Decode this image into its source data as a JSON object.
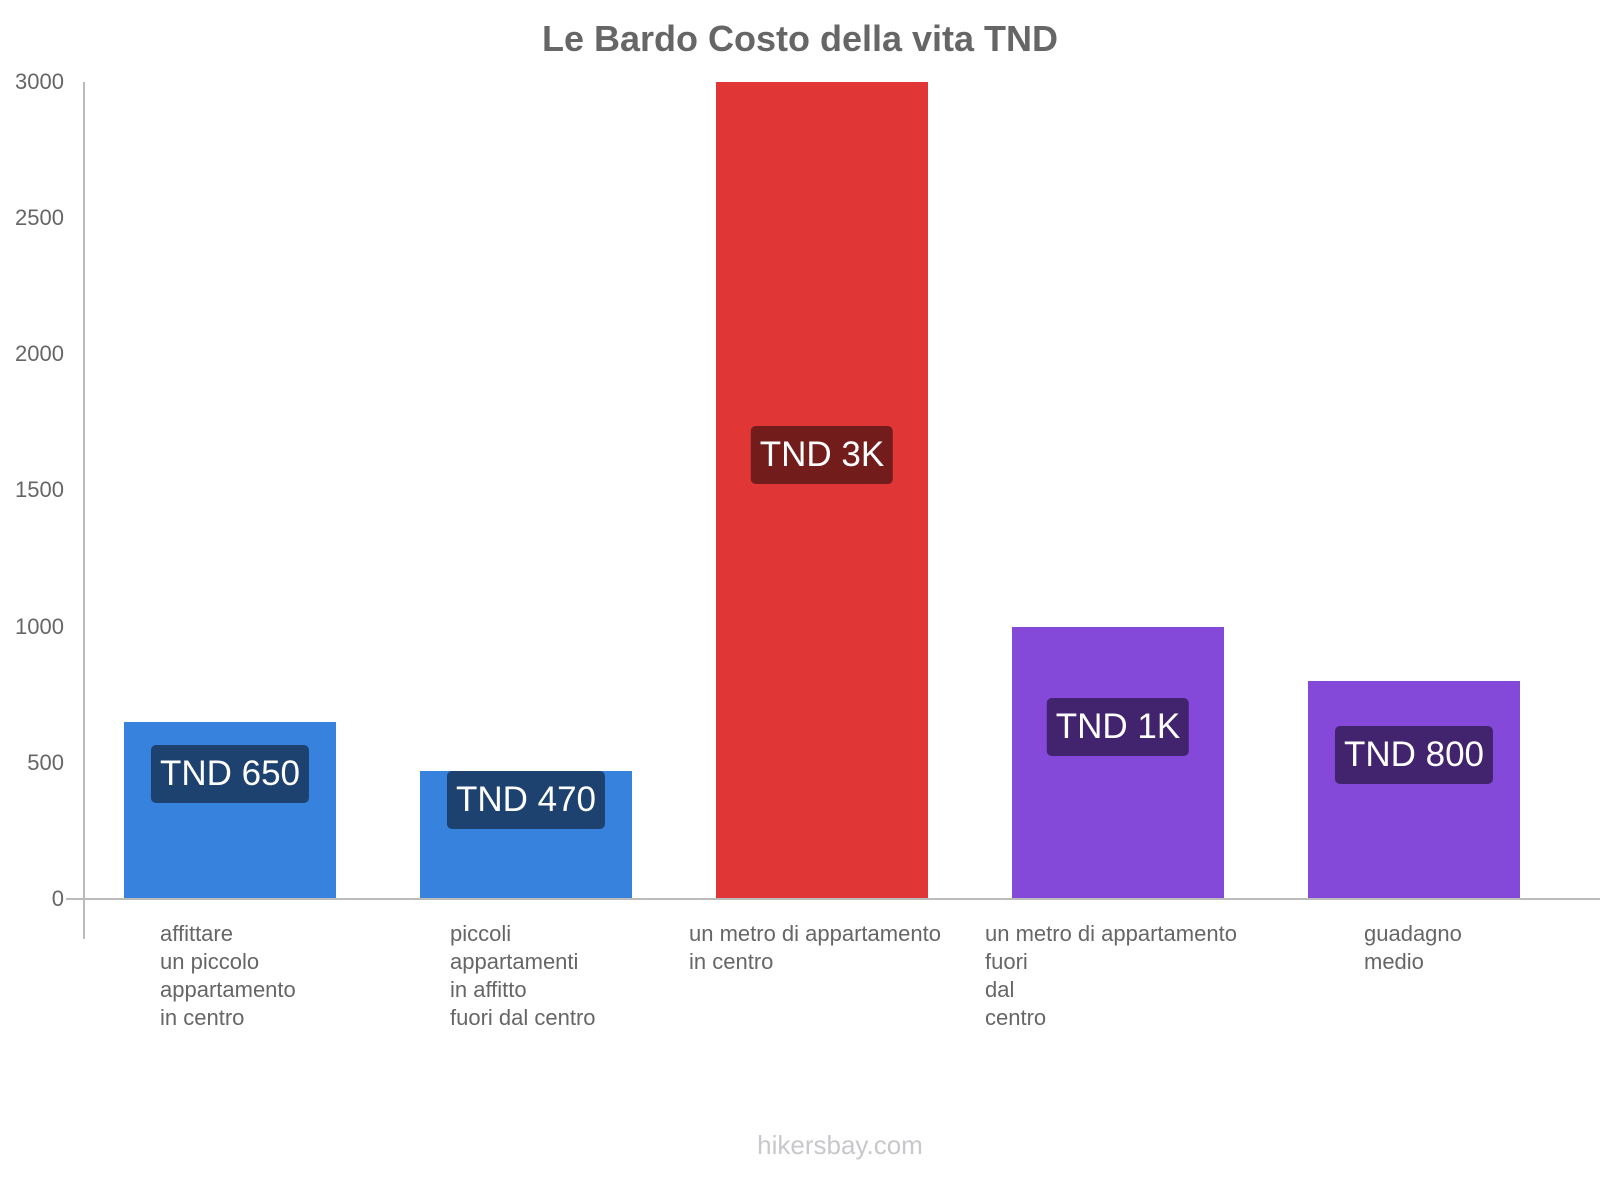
{
  "title": "Le Bardo Costo della vita TND",
  "footer": "hikersbay.com",
  "y_ticks": [
    "3000",
    "2500",
    "2000",
    "1500",
    "1000",
    "500",
    "0"
  ],
  "bars": [
    {
      "label_lines": "affittare\nun piccolo\nappartamento\nin centro",
      "value_label": "TND 650",
      "value": 650,
      "color": "#3682dd",
      "label_bg": "#1e426f"
    },
    {
      "label_lines": "piccoli\nappartamenti\nin affitto\nfuori dal centro",
      "value_label": "TND 470",
      "value": 470,
      "color": "#3682dd",
      "label_bg": "#1e426f"
    },
    {
      "label_lines": "un metro di appartamento\nin centro",
      "value_label": "TND 3K",
      "value": 3000,
      "color": "#e03636",
      "label_bg": "#731c1c"
    },
    {
      "label_lines": "un metro di appartamento\nfuori\ndal\ncentro",
      "value_label": "TND 1K",
      "value": 1000,
      "color": "#8449d8",
      "label_bg": "#42246e"
    },
    {
      "label_lines": "guadagno\nmedio",
      "value_label": "TND 800",
      "value": 800,
      "color": "#8449d8",
      "label_bg": "#42246e"
    }
  ],
  "chart_data": {
    "type": "bar",
    "title": "Le Bardo Costo della vita TND",
    "categories": [
      "affittare un piccolo appartamento in centro",
      "piccoli appartamenti in affitto fuori dal centro",
      "un metro di appartamento in centro",
      "un metro di appartamento fuori dal centro",
      "guadagno medio"
    ],
    "values": [
      650,
      470,
      3000,
      1000,
      800
    ],
    "data_labels": [
      "TND 650",
      "TND 470",
      "TND 3K",
      "TND 1K",
      "TND 800"
    ],
    "colors": [
      "#3682dd",
      "#3682dd",
      "#e03636",
      "#8449d8",
      "#8449d8"
    ],
    "xlabel": "",
    "ylabel": "",
    "ylim": [
      0,
      3000
    ],
    "yticks": [
      0,
      500,
      1000,
      1500,
      2000,
      2500,
      3000
    ],
    "grid": false,
    "legend": null
  }
}
